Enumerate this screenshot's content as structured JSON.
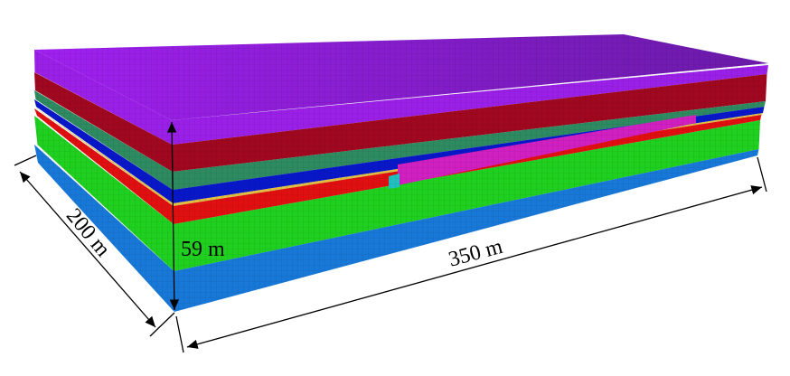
{
  "labels": {
    "width": "200 m",
    "length": "350 m",
    "height": "59 m"
  }
}
